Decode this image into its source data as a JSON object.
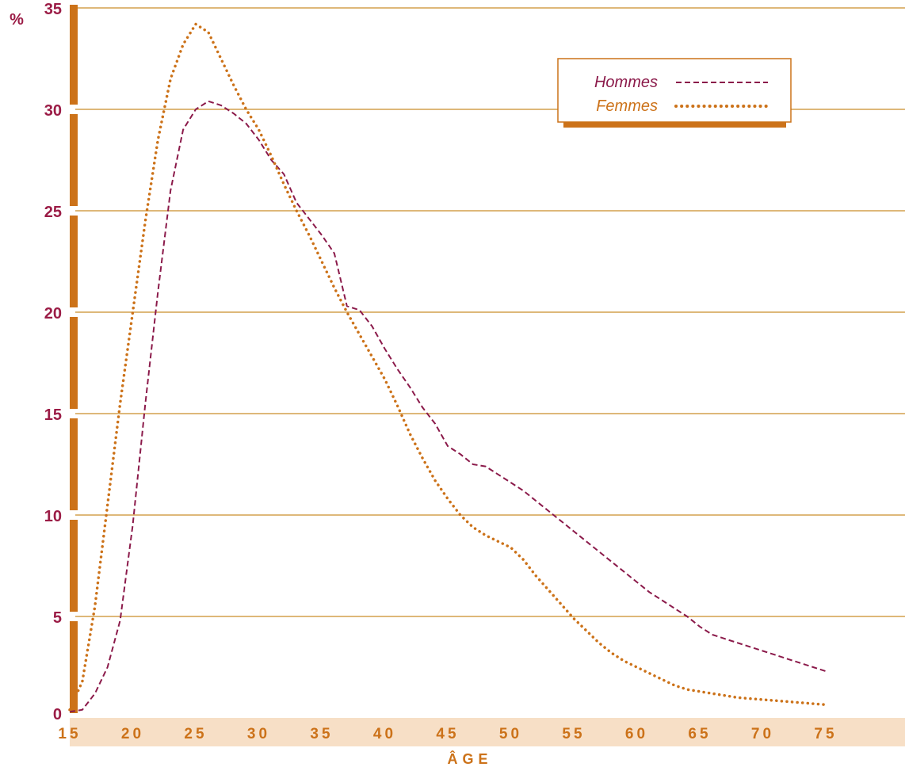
{
  "chart_data": {
    "type": "line",
    "y_unit": "%",
    "xlabel": "ÂGE",
    "ylabel": "",
    "x_ticks": [
      15,
      20,
      25,
      30,
      35,
      40,
      45,
      50,
      55,
      60,
      65,
      70,
      75
    ],
    "y_ticks": [
      0,
      5,
      10,
      15,
      20,
      25,
      30,
      35
    ],
    "xlim": [
      15,
      79
    ],
    "ylim": [
      0,
      35
    ],
    "grid": true,
    "legend_position": "top-right",
    "series": [
      {
        "name": "Hommes",
        "color": "#8b1a4a",
        "style": "dashed",
        "points": [
          [
            15,
            0.3
          ],
          [
            16,
            0.4
          ],
          [
            17,
            1.2
          ],
          [
            18,
            2.5
          ],
          [
            19,
            4.8
          ],
          [
            20,
            9.5
          ],
          [
            21,
            15.5
          ],
          [
            22,
            21
          ],
          [
            23,
            26
          ],
          [
            24,
            29
          ],
          [
            25,
            30
          ],
          [
            26,
            30.4
          ],
          [
            27,
            30.2
          ],
          [
            28,
            29.8
          ],
          [
            29,
            29.3
          ],
          [
            30,
            28.5
          ],
          [
            31,
            27.5
          ],
          [
            32,
            26.8
          ],
          [
            33,
            25.4
          ],
          [
            34,
            24.6
          ],
          [
            35,
            23.8
          ],
          [
            36,
            22.9
          ],
          [
            37,
            20.3
          ],
          [
            38,
            20.1
          ],
          [
            39,
            19.3
          ],
          [
            40,
            18.2
          ],
          [
            41,
            17.2
          ],
          [
            42,
            16.3
          ],
          [
            43,
            15.3
          ],
          [
            44,
            14.5
          ],
          [
            45,
            13.4
          ],
          [
            46,
            13.0
          ],
          [
            47,
            12.5
          ],
          [
            48,
            12.4
          ],
          [
            49,
            12.0
          ],
          [
            50,
            11.6
          ],
          [
            51,
            11.2
          ],
          [
            52,
            10.7
          ],
          [
            53,
            10.2
          ],
          [
            54,
            9.7
          ],
          [
            55,
            9.2
          ],
          [
            56,
            8.7
          ],
          [
            57,
            8.2
          ],
          [
            58,
            7.7
          ],
          [
            59,
            7.2
          ],
          [
            60,
            6.7
          ],
          [
            61,
            6.2
          ],
          [
            62,
            5.8
          ],
          [
            63,
            5.4
          ],
          [
            64,
            5.0
          ],
          [
            65,
            4.5
          ],
          [
            66,
            4.1
          ],
          [
            67,
            3.9
          ],
          [
            68,
            3.7
          ],
          [
            69,
            3.5
          ],
          [
            70,
            3.3
          ],
          [
            71,
            3.1
          ],
          [
            72,
            2.9
          ],
          [
            73,
            2.7
          ],
          [
            74,
            2.5
          ],
          [
            75,
            2.3
          ]
        ]
      },
      {
        "name": "Femmes",
        "color": "#cc7219",
        "style": "dotted",
        "points": [
          [
            15,
            0.4
          ],
          [
            16,
            1.8
          ],
          [
            17,
            5.5
          ],
          [
            18,
            10.5
          ],
          [
            19,
            15.5
          ],
          [
            20,
            20
          ],
          [
            21,
            24.5
          ],
          [
            22,
            28.5
          ],
          [
            23,
            31.5
          ],
          [
            24,
            33.2
          ],
          [
            25,
            34.2
          ],
          [
            26,
            33.8
          ],
          [
            27,
            32.5
          ],
          [
            28,
            31.2
          ],
          [
            29,
            30
          ],
          [
            30,
            29
          ],
          [
            31,
            27.7
          ],
          [
            32,
            26.3
          ],
          [
            33,
            25.0
          ],
          [
            34,
            23.8
          ],
          [
            35,
            22.5
          ],
          [
            36,
            21.2
          ],
          [
            37,
            20.0
          ],
          [
            38,
            18.9
          ],
          [
            39,
            17.8
          ],
          [
            40,
            16.7
          ],
          [
            41,
            15.4
          ],
          [
            42,
            14.0
          ],
          [
            43,
            12.8
          ],
          [
            44,
            11.7
          ],
          [
            45,
            10.8
          ],
          [
            46,
            10.0
          ],
          [
            47,
            9.4
          ],
          [
            48,
            9.0
          ],
          [
            49,
            8.7
          ],
          [
            50,
            8.4
          ],
          [
            51,
            7.8
          ],
          [
            52,
            7.0
          ],
          [
            53,
            6.3
          ],
          [
            54,
            5.6
          ],
          [
            55,
            4.9
          ],
          [
            56,
            4.3
          ],
          [
            57,
            3.7
          ],
          [
            58,
            3.2
          ],
          [
            59,
            2.8
          ],
          [
            60,
            2.5
          ],
          [
            61,
            2.2
          ],
          [
            62,
            1.9
          ],
          [
            63,
            1.6
          ],
          [
            64,
            1.4
          ],
          [
            65,
            1.3
          ],
          [
            66,
            1.2
          ],
          [
            67,
            1.1
          ],
          [
            68,
            1.0
          ],
          [
            69,
            0.95
          ],
          [
            70,
            0.9
          ],
          [
            71,
            0.85
          ],
          [
            72,
            0.8
          ],
          [
            73,
            0.75
          ],
          [
            74,
            0.7
          ],
          [
            75,
            0.65
          ]
        ]
      }
    ]
  },
  "colors": {
    "axis_orange": "#cc7219",
    "grid": "#d4a04d",
    "tick_red": "#9b1c46",
    "xband": "#f7dfc6",
    "x_tick_color": "#cc7219",
    "xlabel_color": "#cc7219"
  }
}
